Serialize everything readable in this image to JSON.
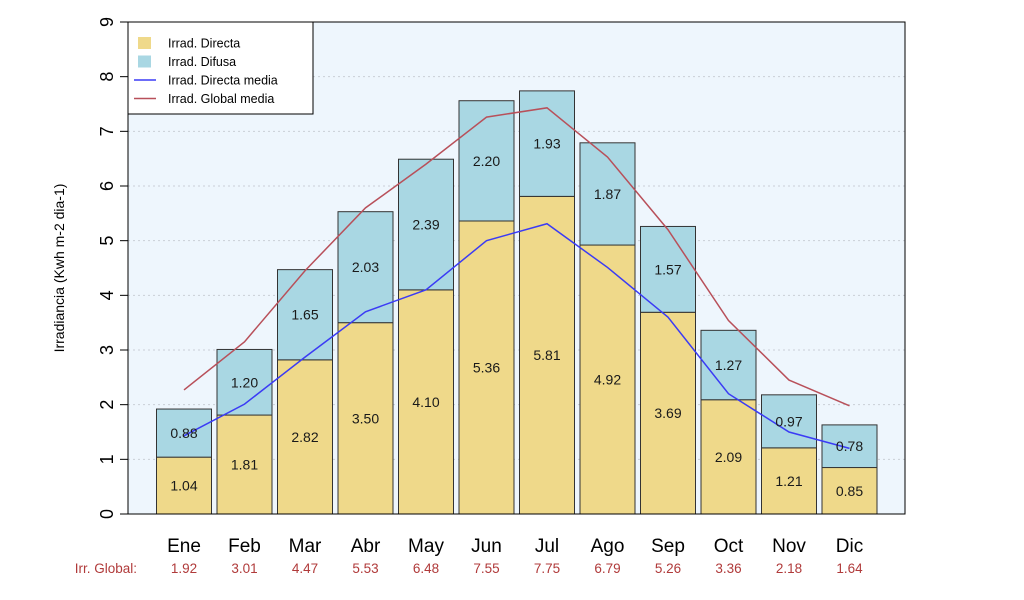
{
  "chart_data": {
    "type": "bar",
    "stacked": true,
    "ylabel": "Irradiancia (Kwh m-2 dia-1)",
    "ylim": [
      0,
      9
    ],
    "yticks": [
      0,
      1,
      2,
      3,
      4,
      5,
      6,
      7,
      8,
      9
    ],
    "grid": true,
    "legend_position": "top-left",
    "categories": [
      "Ene",
      "Feb",
      "Mar",
      "Abr",
      "May",
      "Jun",
      "Jul",
      "Ago",
      "Sep",
      "Oct",
      "Nov",
      "Dic"
    ],
    "series": [
      {
        "name": "Irrad. Directa",
        "kind": "bar",
        "color": "#efd98a",
        "values": [
          1.04,
          1.81,
          2.82,
          3.5,
          4.1,
          5.36,
          5.81,
          4.92,
          3.69,
          2.09,
          1.21,
          0.85
        ],
        "labels": [
          "1.04",
          "1.81",
          "2.82",
          "3.50",
          "4.10",
          "5.36",
          "5.81",
          "4.92",
          "3.69",
          "2.09",
          "1.21",
          "0.85"
        ]
      },
      {
        "name": "Irrad. Difusa",
        "kind": "bar",
        "color": "#a9d7e3",
        "values": [
          0.88,
          1.2,
          1.65,
          2.03,
          2.39,
          2.2,
          1.93,
          1.87,
          1.57,
          1.27,
          0.97,
          0.78
        ],
        "labels": [
          "0.88",
          "1.20",
          "1.65",
          "2.03",
          "2.39",
          "2.20",
          "1.93",
          "1.87",
          "1.57",
          "1.27",
          "0.97",
          "0.78"
        ]
      },
      {
        "name": "Irrad. Directa media",
        "kind": "line",
        "color": "#3b3bf5",
        "values": [
          1.43,
          2.01,
          2.87,
          3.7,
          4.1,
          5.0,
          5.31,
          4.51,
          3.6,
          2.2,
          1.5,
          1.2
        ]
      },
      {
        "name": "Irrad. Global media",
        "kind": "line",
        "color": "#b8505a",
        "values": [
          2.27,
          3.15,
          4.45,
          5.6,
          6.4,
          7.26,
          7.43,
          6.53,
          5.2,
          3.54,
          2.45,
          1.98
        ]
      }
    ],
    "global": {
      "label": "Irr. Global:",
      "color": "#b03a3a",
      "values": [
        "1.92",
        "3.01",
        "4.47",
        "5.53",
        "6.48",
        "7.55",
        "7.75",
        "6.79",
        "5.26",
        "3.36",
        "2.18",
        "1.64"
      ]
    }
  }
}
